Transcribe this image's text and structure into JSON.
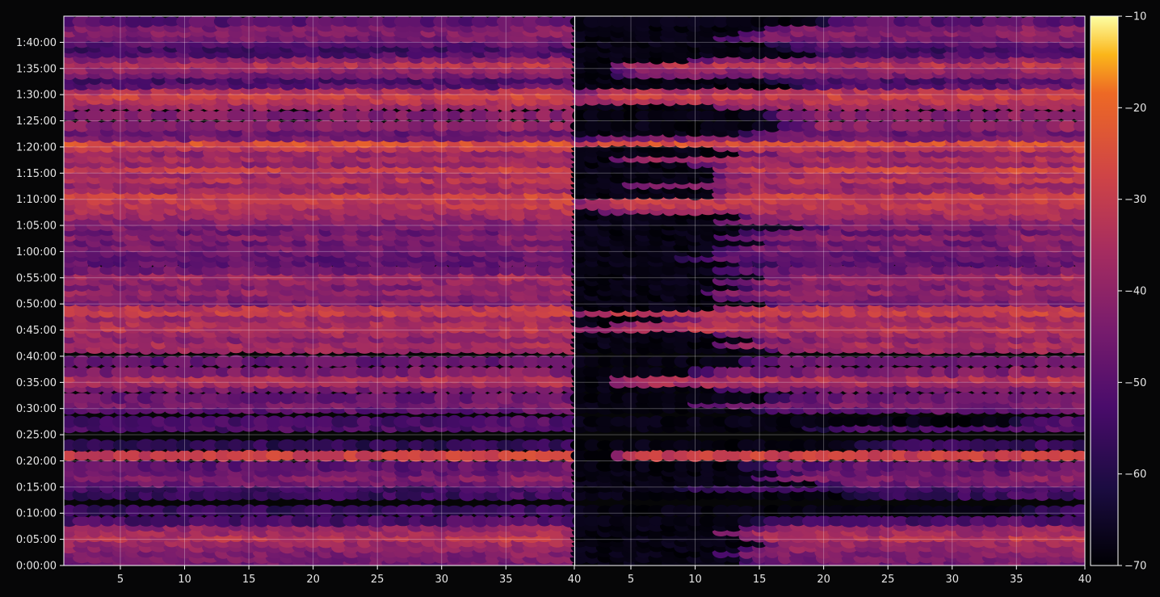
{
  "chart_data": {
    "type": "heatmap",
    "title": "",
    "xlabel": "",
    "ylabel": "",
    "panels": [
      {
        "name": "",
        "xlim": [
          1,
          40
        ],
        "xticks": [
          5,
          10,
          15,
          20,
          25,
          30,
          35,
          40
        ],
        "xtick_labels": [
          "5",
          "10",
          "15",
          "20",
          "25",
          "30",
          "35",
          "40"
        ]
      },
      {
        "name": "",
        "xlim": [
          1,
          40
        ],
        "xticks": [
          5,
          10,
          15,
          20,
          25,
          30,
          35,
          40
        ],
        "xtick_labels": [
          "5",
          "10",
          "15",
          "20",
          "25",
          "30",
          "35",
          "40"
        ]
      }
    ],
    "y_unit": "seconds",
    "ylim": [
      0,
      6300
    ],
    "yticks": [
      0,
      300,
      600,
      900,
      1200,
      1500,
      1800,
      2100,
      2400,
      2700,
      3000,
      3300,
      3600,
      3900,
      4200,
      4500,
      4800,
      5100,
      5400,
      5700,
      6000
    ],
    "ytick_labels": [
      "0:00:00",
      "0:05:00",
      "0:10:00",
      "0:15:00",
      "0:20:00",
      "0:25:00",
      "0:30:00",
      "0:35:00",
      "0:40:00",
      "0:45:00",
      "0:50:00",
      "0:55:00",
      "1:00:00",
      "1:05:00",
      "1:10:00",
      "1:15:00",
      "1:20:00",
      "1:25:00",
      "1:30:00",
      "1:35:00",
      "1:40:00"
    ],
    "grid": true,
    "colorbar": {
      "colormap": "inferno",
      "range": [
        -70,
        -10
      ],
      "ticks": [
        -70,
        -60,
        -50,
        -40,
        -30,
        -20,
        -10
      ],
      "tick_labels": [
        "−70",
        "−60",
        "−50",
        "−40",
        "−30",
        "−20",
        "−10"
      ]
    },
    "bands": [
      {
        "time": 3,
        "level": -47
      },
      {
        "time": 6,
        "level": -50
      },
      {
        "time": 9,
        "level": -54
      },
      {
        "time": 3,
        "level": -48
      },
      {
        "time": 3,
        "level": -47
      },
      {
        "time": 3,
        "level": -47
      },
      {
        "time": 3,
        "level": -47
      },
      {
        "time": 3,
        "level": -47
      },
      {
        "time": 3,
        "level": -47
      }
    ],
    "levels": [
      {
        "t": 30,
        "v": -46
      },
      {
        "t": 90,
        "v": -44
      },
      {
        "t": 150,
        "v": -43
      },
      {
        "t": 210,
        "v": -40
      },
      {
        "t": 270,
        "v": -38
      },
      {
        "t": 330,
        "v": -33
      },
      {
        "t": 390,
        "v": -37
      },
      {
        "t": 450,
        "v": -40
      },
      {
        "t": 510,
        "v": -53
      },
      {
        "t": 630,
        "v": -57
      },
      {
        "t": 810,
        "v": -56
      },
      {
        "t": 900,
        "v": -55
      },
      {
        "t": 960,
        "v": -46
      },
      {
        "t": 1020,
        "v": -43
      },
      {
        "t": 1080,
        "v": -47
      },
      {
        "t": 1140,
        "v": -49
      },
      {
        "t": 1260,
        "v": -29
      },
      {
        "t": 1380,
        "v": -58
      },
      {
        "t": 1590,
        "v": -52
      },
      {
        "t": 1650,
        "v": -53
      },
      {
        "t": 1800,
        "v": -49
      },
      {
        "t": 1860,
        "v": -44
      },
      {
        "t": 1920,
        "v": -47
      },
      {
        "t": 2040,
        "v": -44
      },
      {
        "t": 2100,
        "v": -36
      },
      {
        "t": 2160,
        "v": -34
      },
      {
        "t": 2220,
        "v": -44
      },
      {
        "t": 2340,
        "v": -48
      },
      {
        "t": 2490,
        "v": -38
      },
      {
        "t": 2550,
        "v": -36
      },
      {
        "t": 2610,
        "v": -41
      },
      {
        "t": 2670,
        "v": -37
      },
      {
        "t": 2730,
        "v": -33
      },
      {
        "t": 2790,
        "v": -35
      },
      {
        "t": 2850,
        "v": -38
      },
      {
        "t": 2910,
        "v": -30
      },
      {
        "t": 2970,
        "v": -32
      },
      {
        "t": 3030,
        "v": -45
      },
      {
        "t": 3090,
        "v": -43
      },
      {
        "t": 3150,
        "v": -39
      },
      {
        "t": 3210,
        "v": -43
      },
      {
        "t": 3270,
        "v": -40
      },
      {
        "t": 3330,
        "v": -37
      },
      {
        "t": 3390,
        "v": -46
      },
      {
        "t": 3480,
        "v": -49
      },
      {
        "t": 3540,
        "v": -49
      },
      {
        "t": 3600,
        "v": -47
      },
      {
        "t": 3660,
        "v": -44
      },
      {
        "t": 3720,
        "v": -46
      },
      {
        "t": 3780,
        "v": -41
      },
      {
        "t": 3840,
        "v": -47
      },
      {
        "t": 3900,
        "v": -44
      },
      {
        "t": 3960,
        "v": -42
      },
      {
        "t": 4020,
        "v": -38
      },
      {
        "t": 4080,
        "v": -35
      },
      {
        "t": 4140,
        "v": -32
      },
      {
        "t": 4200,
        "v": -31
      },
      {
        "t": 4260,
        "v": -29
      },
      {
        "t": 4320,
        "v": -38
      },
      {
        "t": 4380,
        "v": -39
      },
      {
        "t": 4440,
        "v": -32
      },
      {
        "t": 4500,
        "v": -37
      },
      {
        "t": 4560,
        "v": -29
      },
      {
        "t": 4620,
        "v": -40
      },
      {
        "t": 4680,
        "v": -36
      },
      {
        "t": 4740,
        "v": -40
      },
      {
        "t": 4800,
        "v": -31
      },
      {
        "t": 4860,
        "v": -25
      },
      {
        "t": 4920,
        "v": -44
      },
      {
        "t": 4980,
        "v": -47
      },
      {
        "t": 5040,
        "v": -41
      },
      {
        "t": 5160,
        "v": -43
      },
      {
        "t": 5280,
        "v": -38
      },
      {
        "t": 5340,
        "v": -33
      },
      {
        "t": 5400,
        "v": -29
      },
      {
        "t": 5460,
        "v": -34
      },
      {
        "t": 5520,
        "v": -50
      },
      {
        "t": 5580,
        "v": -53
      },
      {
        "t": 5640,
        "v": -44
      },
      {
        "t": 5700,
        "v": -40
      },
      {
        "t": 5760,
        "v": -33
      },
      {
        "t": 5820,
        "v": -42
      },
      {
        "t": 5880,
        "v": -52
      },
      {
        "t": 5940,
        "v": -55
      },
      {
        "t": 6000,
        "v": -50
      },
      {
        "t": 6060,
        "v": -45
      },
      {
        "t": 6120,
        "v": -42
      },
      {
        "t": 6180,
        "v": -44
      },
      {
        "t": 6240,
        "v": -50
      }
    ],
    "right_panel_onset_x": [
      {
        "t": 30,
        "x": 14
      },
      {
        "t": 150,
        "x": 12
      },
      {
        "t": 270,
        "x": 16
      },
      {
        "t": 390,
        "x": 12
      },
      {
        "t": 510,
        "x": 14
      },
      {
        "t": 630,
        "x": 35
      },
      {
        "t": 810,
        "x": 22
      },
      {
        "t": 900,
        "x": 8
      },
      {
        "t": 960,
        "x": 20
      },
      {
        "t": 1020,
        "x": 15
      },
      {
        "t": 1080,
        "x": 17
      },
      {
        "t": 1140,
        "x": 14
      },
      {
        "t": 1260,
        "x": 4
      },
      {
        "t": 1380,
        "x": 22
      },
      {
        "t": 1590,
        "x": 19
      },
      {
        "t": 1650,
        "x": 35
      },
      {
        "t": 1800,
        "x": 15
      },
      {
        "t": 1860,
        "x": 10
      },
      {
        "t": 1920,
        "x": 16
      },
      {
        "t": 2040,
        "x": 12
      },
      {
        "t": 2100,
        "x": 4
      },
      {
        "t": 2160,
        "x": 4
      },
      {
        "t": 2220,
        "x": 10
      },
      {
        "t": 2340,
        "x": 14
      },
      {
        "t": 2490,
        "x": 16
      },
      {
        "t": 2550,
        "x": 12
      },
      {
        "t": 2610,
        "x": 15
      },
      {
        "t": 2670,
        "x": 12
      },
      {
        "t": 2730,
        "x": 1
      },
      {
        "t": 2790,
        "x": 4
      },
      {
        "t": 2850,
        "x": 8
      },
      {
        "t": 2910,
        "x": 1
      },
      {
        "t": 2970,
        "x": 12
      },
      {
        "t": 3030,
        "x": 16
      },
      {
        "t": 3090,
        "x": 12
      },
      {
        "t": 3150,
        "x": 11
      },
      {
        "t": 3210,
        "x": 14
      },
      {
        "t": 3270,
        "x": 12
      },
      {
        "t": 3330,
        "x": 16
      },
      {
        "t": 3390,
        "x": 12
      },
      {
        "t": 3480,
        "x": 14
      },
      {
        "t": 3540,
        "x": 9
      },
      {
        "t": 3600,
        "x": 12
      },
      {
        "t": 3660,
        "x": 12
      },
      {
        "t": 3720,
        "x": 16
      },
      {
        "t": 3780,
        "x": 12
      },
      {
        "t": 3840,
        "x": 14
      },
      {
        "t": 3900,
        "x": 19
      },
      {
        "t": 3960,
        "x": 12
      },
      {
        "t": 4020,
        "x": 14
      },
      {
        "t": 4080,
        "x": 3
      },
      {
        "t": 4140,
        "x": 1
      },
      {
        "t": 4200,
        "x": 1
      },
      {
        "t": 4260,
        "x": 12
      },
      {
        "t": 4320,
        "x": 12
      },
      {
        "t": 4380,
        "x": 5
      },
      {
        "t": 4440,
        "x": 12
      },
      {
        "t": 4500,
        "x": 12
      },
      {
        "t": 4560,
        "x": 12
      },
      {
        "t": 4620,
        "x": 10
      },
      {
        "t": 4680,
        "x": 4
      },
      {
        "t": 4740,
        "x": 14
      },
      {
        "t": 4800,
        "x": 12
      },
      {
        "t": 4860,
        "x": 1
      },
      {
        "t": 4920,
        "x": 1
      },
      {
        "t": 4980,
        "x": 14
      },
      {
        "t": 5040,
        "x": 17
      },
      {
        "t": 5160,
        "x": 16
      },
      {
        "t": 5280,
        "x": 12
      },
      {
        "t": 5340,
        "x": 1
      },
      {
        "t": 5400,
        "x": 1
      },
      {
        "t": 5460,
        "x": 1
      },
      {
        "t": 5520,
        "x": 18
      },
      {
        "t": 5580,
        "x": 16
      },
      {
        "t": 5640,
        "x": 4
      },
      {
        "t": 5700,
        "x": 4
      },
      {
        "t": 5760,
        "x": 4
      },
      {
        "t": 5820,
        "x": 10
      },
      {
        "t": 5880,
        "x": 20
      },
      {
        "t": 5940,
        "x": 16
      },
      {
        "t": 6000,
        "x": 16
      },
      {
        "t": 6060,
        "x": 12
      },
      {
        "t": 6120,
        "x": 14
      },
      {
        "t": 6180,
        "x": 16
      },
      {
        "t": 6240,
        "x": 20
      }
    ]
  }
}
